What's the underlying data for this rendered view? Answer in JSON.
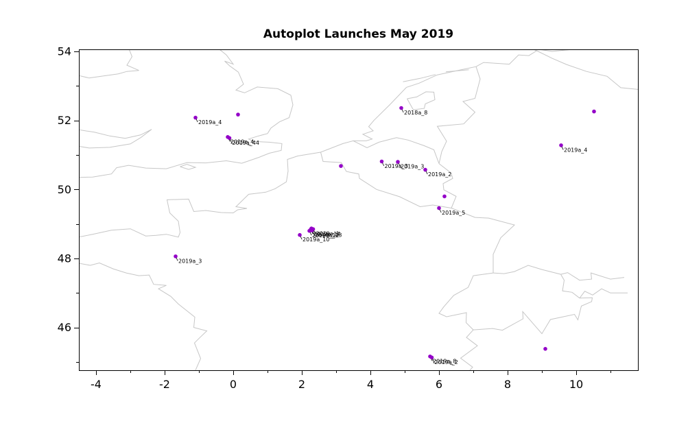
{
  "chart_data": {
    "type": "scatter",
    "title": "Autoplot Launches May 2019",
    "xlabel": "",
    "ylabel": "",
    "xlim": [
      -4.5,
      11.8
    ],
    "ylim": [
      44.76,
      54.06
    ],
    "grid": false,
    "legend": "none",
    "marker_color": "#9400c8",
    "label_color": "#000000",
    "basemap_color": "#c6c6c6",
    "x_major_ticks": [
      -4,
      -2,
      0,
      2,
      4,
      6,
      8,
      10
    ],
    "x_minor_ticks": [
      -3,
      -1,
      1,
      3,
      5,
      7,
      9,
      11
    ],
    "y_major_ticks": [
      46,
      48,
      50,
      52,
      54
    ],
    "y_minor_ticks": [
      45,
      47,
      49,
      51,
      53
    ],
    "points": [
      {
        "lon": -1.1,
        "lat": 52.08,
        "label": "2019a_4"
      },
      {
        "lon": 0.14,
        "lat": 52.17,
        "label": ""
      },
      {
        "lon": -0.16,
        "lat": 51.52,
        "label": "2019a_4"
      },
      {
        "lon": -0.11,
        "lat": 51.49,
        "label": "2019a_44"
      },
      {
        "lon": 4.9,
        "lat": 52.36,
        "label": "2018a_8"
      },
      {
        "lon": 9.56,
        "lat": 51.28,
        "label": "2019a_4"
      },
      {
        "lon": 10.52,
        "lat": 52.26,
        "label": ""
      },
      {
        "lon": 3.14,
        "lat": 50.68,
        "label": ""
      },
      {
        "lon": 4.33,
        "lat": 50.81,
        "label": "2019a_3"
      },
      {
        "lon": 4.8,
        "lat": 50.8,
        "label": "2019a_3"
      },
      {
        "lon": 5.6,
        "lat": 50.57,
        "label": "2019a_2"
      },
      {
        "lon": 6.16,
        "lat": 49.8,
        "label": ""
      },
      {
        "lon": 6.0,
        "lat": 49.46,
        "label": "2019a_5"
      },
      {
        "lon": 1.94,
        "lat": 48.68,
        "label": "2019a_10"
      },
      {
        "lon": 2.22,
        "lat": 48.8,
        "label": "2019a_12"
      },
      {
        "lon": 2.26,
        "lat": 48.84,
        "label": "2019a_14"
      },
      {
        "lon": 2.3,
        "lat": 48.81,
        "label": "2019a_13"
      },
      {
        "lon": 2.33,
        "lat": 48.85,
        "label": "2019a_1"
      },
      {
        "lon": 2.28,
        "lat": 48.87,
        "label": ""
      },
      {
        "lon": -1.68,
        "lat": 48.06,
        "label": "2019a_3"
      },
      {
        "lon": 5.74,
        "lat": 45.16,
        "label": "2019a_8"
      },
      {
        "lon": 5.79,
        "lat": 45.13,
        "label": "2019a_2"
      },
      {
        "lon": 9.1,
        "lat": 45.38,
        "label": ""
      }
    ],
    "basemap_polylines": [
      [
        [
          -4.5,
          50.35
        ],
        [
          -4.1,
          50.36
        ],
        [
          -3.55,
          50.45
        ],
        [
          -3.4,
          50.63
        ],
        [
          -3.05,
          50.7
        ],
        [
          -2.55,
          50.62
        ],
        [
          -1.95,
          50.6
        ],
        [
          -1.35,
          50.78
        ],
        [
          -0.8,
          50.77
        ],
        [
          -0.2,
          50.83
        ],
        [
          0.25,
          50.76
        ],
        [
          0.75,
          50.93
        ],
        [
          1.05,
          51.05
        ],
        [
          1.4,
          51.13
        ],
        [
          1.42,
          51.33
        ],
        [
          1.05,
          51.37
        ],
        [
          0.6,
          51.39
        ],
        [
          0.45,
          51.46
        ],
        [
          0.7,
          51.54
        ],
        [
          1.0,
          51.62
        ],
        [
          1.1,
          51.78
        ],
        [
          1.35,
          51.96
        ],
        [
          1.63,
          52.08
        ],
        [
          1.74,
          52.45
        ],
        [
          1.68,
          52.73
        ],
        [
          1.3,
          52.92
        ],
        [
          0.7,
          52.97
        ],
        [
          0.33,
          52.8
        ],
        [
          0.08,
          52.88
        ],
        [
          0.3,
          53.05
        ],
        [
          0.15,
          53.4
        ],
        [
          -0.1,
          53.58
        ],
        [
          -0.25,
          53.72
        ],
        [
          0.0,
          53.63
        ],
        [
          -0.2,
          53.9
        ],
        [
          -0.45,
          54.1
        ]
      ],
      [
        [
          -3.05,
          54.1
        ],
        [
          -2.95,
          53.85
        ],
        [
          -3.1,
          53.6
        ],
        [
          -2.75,
          53.45
        ],
        [
          -3.1,
          53.42
        ],
        [
          -3.35,
          53.35
        ],
        [
          -3.85,
          53.28
        ],
        [
          -4.2,
          53.23
        ],
        [
          -4.5,
          53.3
        ]
      ],
      [
        [
          -4.5,
          51.73
        ],
        [
          -4.05,
          51.66
        ],
        [
          -3.6,
          51.55
        ],
        [
          -3.15,
          51.48
        ],
        [
          -2.7,
          51.58
        ],
        [
          -2.38,
          51.74
        ],
        [
          -2.7,
          51.5
        ],
        [
          -3.0,
          51.32
        ],
        [
          -3.6,
          51.22
        ],
        [
          -4.2,
          51.2
        ],
        [
          -4.5,
          51.25
        ]
      ],
      [
        [
          -1.55,
          50.66
        ],
        [
          -1.3,
          50.58
        ],
        [
          -1.1,
          50.64
        ],
        [
          -1.35,
          50.73
        ],
        [
          -1.55,
          50.66
        ]
      ],
      [
        [
          -4.5,
          48.62
        ],
        [
          -4.1,
          48.7
        ],
        [
          -3.55,
          48.82
        ],
        [
          -3.0,
          48.86
        ],
        [
          -2.55,
          48.65
        ],
        [
          -2.25,
          48.67
        ],
        [
          -1.95,
          48.7
        ],
        [
          -1.6,
          48.62
        ],
        [
          -1.55,
          48.75
        ],
        [
          -1.6,
          49.08
        ],
        [
          -1.85,
          49.32
        ],
        [
          -1.93,
          49.7
        ],
        [
          -1.3,
          49.72
        ],
        [
          -1.15,
          49.36
        ],
        [
          -0.8,
          49.39
        ],
        [
          -0.35,
          49.33
        ],
        [
          0.0,
          49.32
        ],
        [
          0.13,
          49.41
        ],
        [
          0.4,
          49.45
        ],
        [
          0.08,
          49.5
        ],
        [
          0.45,
          49.86
        ],
        [
          0.95,
          49.92
        ],
        [
          1.22,
          50.02
        ],
        [
          1.55,
          50.22
        ],
        [
          1.6,
          50.53
        ],
        [
          1.58,
          50.87
        ],
        [
          1.88,
          50.97
        ],
        [
          2.55,
          51.08
        ],
        [
          3.2,
          51.33
        ],
        [
          3.5,
          51.41
        ],
        [
          3.88,
          51.41
        ],
        [
          4.05,
          51.46
        ],
        [
          3.78,
          51.6
        ],
        [
          4.08,
          51.7
        ],
        [
          3.95,
          51.82
        ],
        [
          4.1,
          52.0
        ],
        [
          4.57,
          52.46
        ],
        [
          5.05,
          52.96
        ],
        [
          5.42,
          53.08
        ],
        [
          5.95,
          53.32
        ],
        [
          6.6,
          53.46
        ],
        [
          7.08,
          53.56
        ],
        [
          7.3,
          53.68
        ],
        [
          8.05,
          53.63
        ],
        [
          8.32,
          53.9
        ],
        [
          8.62,
          53.88
        ],
        [
          8.85,
          54.02
        ],
        [
          8.65,
          54.1
        ]
      ],
      [
        [
          5.07,
          52.63
        ],
        [
          5.35,
          52.68
        ],
        [
          5.62,
          52.83
        ],
        [
          5.85,
          52.82
        ],
        [
          5.88,
          52.6
        ],
        [
          5.6,
          52.48
        ],
        [
          5.57,
          52.35
        ],
        [
          5.25,
          52.31
        ],
        [
          5.07,
          52.63
        ]
      ],
      [
        [
          -4.5,
          47.86
        ],
        [
          -4.17,
          47.8
        ],
        [
          -3.9,
          47.87
        ],
        [
          -3.5,
          47.7
        ],
        [
          -3.12,
          47.58
        ],
        [
          -2.75,
          47.5
        ],
        [
          -2.45,
          47.52
        ],
        [
          -2.32,
          47.25
        ],
        [
          -1.95,
          47.22
        ],
        [
          -2.18,
          47.12
        ],
        [
          -1.82,
          46.9
        ],
        [
          -1.6,
          46.68
        ],
        [
          -1.12,
          46.3
        ],
        [
          -1.15,
          46.0
        ],
        [
          -0.77,
          45.9
        ],
        [
          -1.0,
          45.68
        ],
        [
          -1.13,
          45.55
        ],
        [
          -0.95,
          45.1
        ],
        [
          -1.1,
          44.76
        ]
      ],
      [
        [
          2.55,
          51.08
        ],
        [
          2.62,
          50.81
        ],
        [
          3.15,
          50.78
        ],
        [
          3.3,
          50.52
        ],
        [
          3.66,
          50.45
        ],
        [
          3.68,
          50.32
        ],
        [
          4.18,
          50.0
        ],
        [
          4.85,
          49.79
        ],
        [
          5.45,
          49.5
        ],
        [
          5.82,
          49.55
        ],
        [
          6.36,
          49.46
        ]
      ],
      [
        [
          3.5,
          51.41
        ],
        [
          3.9,
          51.21
        ],
        [
          4.25,
          51.37
        ],
        [
          4.76,
          51.5
        ],
        [
          5.1,
          51.43
        ],
        [
          5.56,
          51.27
        ],
        [
          5.85,
          51.15
        ],
        [
          6.0,
          50.75
        ]
      ],
      [
        [
          6.0,
          50.75
        ],
        [
          6.35,
          50.48
        ],
        [
          6.4,
          50.32
        ],
        [
          6.12,
          50.17
        ],
        [
          6.14,
          49.99
        ],
        [
          6.5,
          49.8
        ],
        [
          6.36,
          49.46
        ]
      ],
      [
        [
          6.0,
          50.75
        ],
        [
          6.08,
          51.1
        ],
        [
          6.22,
          51.4
        ],
        [
          5.95,
          51.83
        ],
        [
          6.72,
          51.9
        ],
        [
          7.05,
          52.24
        ],
        [
          6.7,
          52.55
        ],
        [
          7.05,
          52.64
        ],
        [
          7.2,
          53.2
        ],
        [
          7.08,
          53.56
        ]
      ],
      [
        [
          6.36,
          49.46
        ],
        [
          7.05,
          49.19
        ],
        [
          7.45,
          49.17
        ],
        [
          8.2,
          48.97
        ],
        [
          7.8,
          48.6
        ],
        [
          7.58,
          48.12
        ],
        [
          7.58,
          47.58
        ]
      ],
      [
        [
          7.58,
          47.58
        ],
        [
          7.9,
          47.56
        ],
        [
          8.2,
          47.62
        ],
        [
          8.6,
          47.8
        ],
        [
          9.0,
          47.68
        ],
        [
          9.55,
          47.54
        ],
        [
          9.65,
          47.37
        ],
        [
          9.6,
          47.06
        ],
        [
          9.88,
          47.02
        ],
        [
          10.1,
          46.85
        ]
      ],
      [
        [
          7.58,
          47.58
        ],
        [
          7.0,
          47.5
        ],
        [
          6.85,
          47.16
        ],
        [
          6.43,
          46.93
        ],
        [
          6.14,
          46.6
        ],
        [
          6.0,
          46.41
        ],
        [
          6.22,
          46.31
        ],
        [
          6.8,
          46.43
        ],
        [
          6.79,
          46.14
        ],
        [
          7.0,
          45.93
        ]
      ],
      [
        [
          7.0,
          45.93
        ],
        [
          7.56,
          45.97
        ],
        [
          7.85,
          45.92
        ],
        [
          8.45,
          46.25
        ],
        [
          8.44,
          46.46
        ],
        [
          9.0,
          45.82
        ],
        [
          9.25,
          46.23
        ],
        [
          9.95,
          46.38
        ],
        [
          10.05,
          46.22
        ],
        [
          10.15,
          46.62
        ],
        [
          10.45,
          46.75
        ],
        [
          10.47,
          46.86
        ],
        [
          10.1,
          46.85
        ]
      ],
      [
        [
          7.0,
          45.93
        ],
        [
          6.8,
          45.71
        ],
        [
          7.12,
          45.47
        ],
        [
          6.63,
          45.11
        ],
        [
          6.98,
          44.85
        ],
        [
          6.9,
          44.76
        ]
      ],
      [
        [
          8.65,
          54.1
        ],
        [
          9.3,
          54.0
        ],
        [
          9.9,
          54.06
        ],
        [
          10.15,
          54.1
        ]
      ],
      [
        [
          8.85,
          54.02
        ],
        [
          9.3,
          53.8
        ],
        [
          9.72,
          53.62
        ],
        [
          10.3,
          53.42
        ],
        [
          10.9,
          53.28
        ],
        [
          11.3,
          52.95
        ],
        [
          11.8,
          52.9
        ]
      ],
      [
        [
          4.95,
          53.12
        ],
        [
          5.45,
          53.22
        ],
        [
          5.9,
          53.33
        ]
      ],
      [
        [
          6.2,
          53.41
        ],
        [
          6.87,
          53.47
        ]
      ],
      [
        [
          9.55,
          47.54
        ],
        [
          9.75,
          47.59
        ],
        [
          10.1,
          47.37
        ],
        [
          10.45,
          47.4
        ],
        [
          10.43,
          47.58
        ],
        [
          11.0,
          47.4
        ],
        [
          11.4,
          47.45
        ]
      ],
      [
        [
          10.1,
          46.85
        ],
        [
          10.25,
          47.05
        ],
        [
          10.48,
          46.94
        ],
        [
          10.74,
          47.12
        ],
        [
          11.0,
          47.0
        ],
        [
          11.5,
          47.0
        ]
      ]
    ]
  }
}
